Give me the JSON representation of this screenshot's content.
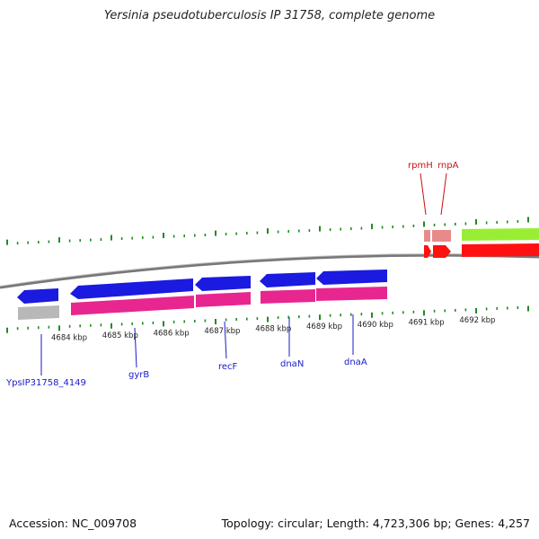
{
  "title": "Yersinia pseudotuberculosis IP 31758, complete genome",
  "footer": {
    "accession": "Accession: NC_009708",
    "summary": "Topology: circular; Length: 4,723,306 bp; Genes: 4,257"
  },
  "colors": {
    "cds_forward": "#1a1ae0",
    "rrna_pink": "#e8268f",
    "gray_feature": "#b8b8b8",
    "light_red": "#e88a8a",
    "red": "#ff1111",
    "green": "#99ee33",
    "tick_green": "#228b22",
    "backbone": "#777777",
    "label_blue": "#1a1acc",
    "label_red": "#cc1111"
  },
  "scale": {
    "ticks": [
      "4684 kbp",
      "4685 kbp",
      "4686 kbp",
      "4687 kbp",
      "4688 kbp",
      "4689 kbp",
      "4690 kbp",
      "4691 kbp",
      "4692 kbp"
    ]
  },
  "labels_top": [
    {
      "name": "rpmH",
      "color": "red"
    },
    {
      "name": "rnpA",
      "color": "red"
    }
  ],
  "labels_bottom": [
    {
      "name": "YpsIP31758_4149",
      "color": "blue"
    },
    {
      "name": "gyrB",
      "color": "blue"
    },
    {
      "name": "recF",
      "color": "blue"
    },
    {
      "name": "dnaN",
      "color": "blue"
    },
    {
      "name": "dnaA",
      "color": "blue"
    }
  ]
}
